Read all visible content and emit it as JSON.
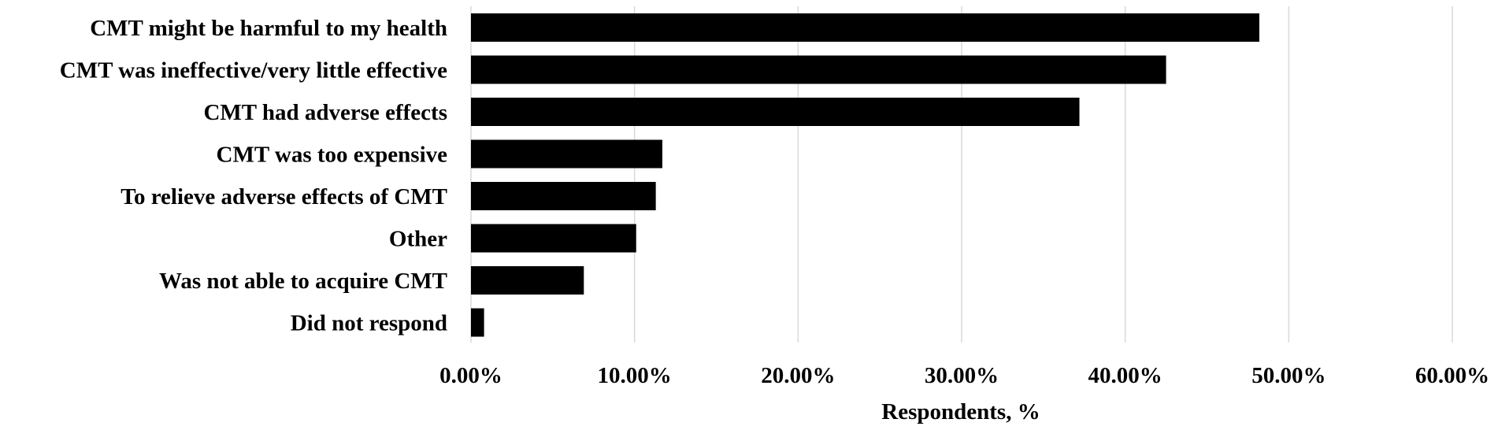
{
  "chart_data": {
    "type": "bar",
    "orientation": "horizontal",
    "categories": [
      "CMT might be harmful to my health",
      "CMT was ineffective/very little effective",
      "CMT had adverse effects",
      "CMT was too expensive",
      "To relieve adverse effects of CMT",
      "Other",
      "Was not able to acquire CMT",
      "Did not respond"
    ],
    "values": [
      48.2,
      42.5,
      37.2,
      11.7,
      11.3,
      10.1,
      6.9,
      0.8
    ],
    "xlabel": "Respondents, %",
    "ylabel": "",
    "xlim": [
      0,
      60
    ],
    "xticks": [
      "0.00%",
      "10.00%",
      "20.00%",
      "30.00%",
      "40.00%",
      "50.00%",
      "60.00%"
    ],
    "grid": true,
    "bar_color": "#000000",
    "grid_color": "#d9d9d9"
  }
}
